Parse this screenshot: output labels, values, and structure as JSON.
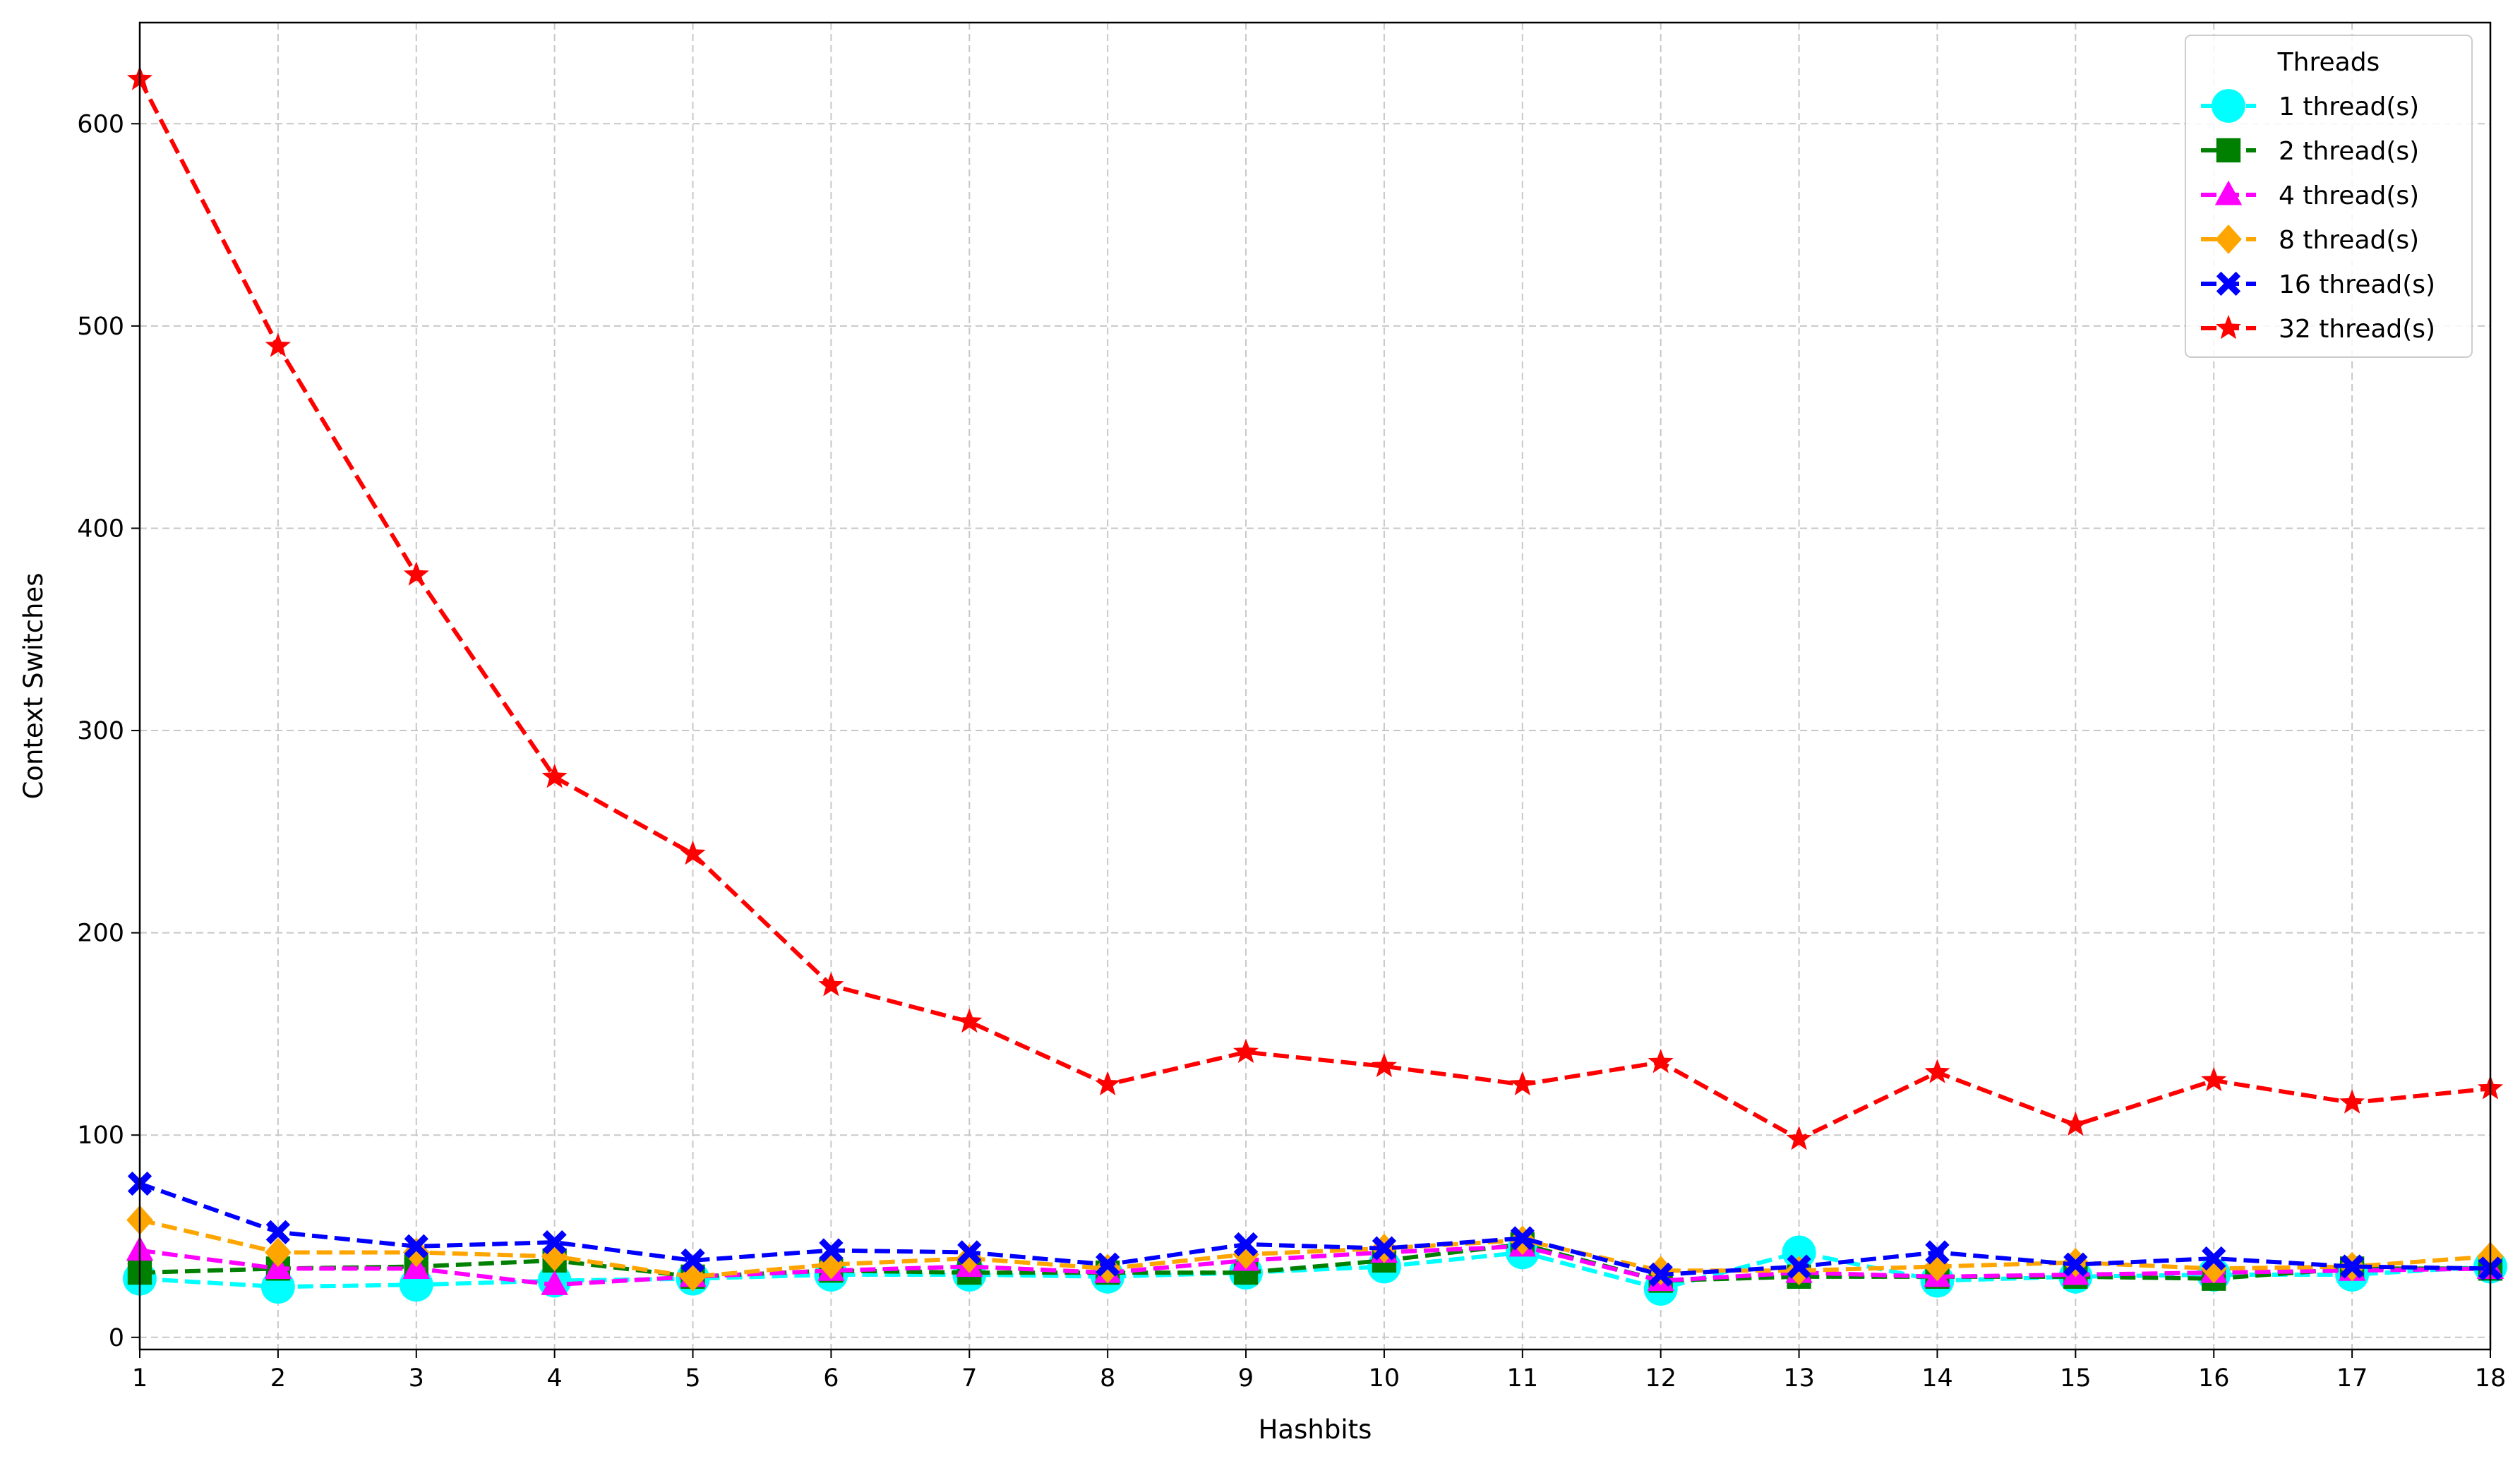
{
  "chart_data": {
    "type": "line",
    "title": "",
    "xlabel": "Hashbits",
    "ylabel": "Context Switches",
    "x": [
      1,
      2,
      3,
      4,
      5,
      6,
      7,
      8,
      9,
      10,
      11,
      12,
      13,
      14,
      15,
      16,
      17,
      18
    ],
    "xlim": [
      1,
      18
    ],
    "ylim": [
      -6,
      650
    ],
    "yticks": [
      0,
      100,
      200,
      300,
      400,
      500,
      600
    ],
    "grid": true,
    "legend": {
      "title": "Threads",
      "placement": "top-right"
    },
    "series": [
      {
        "name": "1 thread(s)",
        "color": "#00ffff",
        "marker": "circle",
        "values": [
          29,
          25,
          26,
          28,
          29,
          31,
          31,
          30,
          32,
          35,
          42,
          24,
          42,
          28,
          30,
          31,
          31,
          35
        ]
      },
      {
        "name": "2 thread(s)",
        "color": "#008000",
        "marker": "square",
        "values": [
          32,
          34,
          35,
          38,
          30,
          33,
          32,
          32,
          32,
          38,
          46,
          28,
          30,
          30,
          30,
          29,
          34,
          34
        ]
      },
      {
        "name": "4 thread(s)",
        "color": "#ff00ff",
        "marker": "triangle",
        "values": [
          43,
          34,
          34,
          26,
          30,
          33,
          35,
          32,
          38,
          42,
          45,
          28,
          32,
          30,
          31,
          32,
          33,
          34
        ]
      },
      {
        "name": "8 thread(s)",
        "color": "#ffa500",
        "marker": "diamond",
        "values": [
          58,
          42,
          42,
          40,
          30,
          36,
          39,
          34,
          41,
          44,
          48,
          33,
          33,
          35,
          37,
          34,
          35,
          40
        ]
      },
      {
        "name": "16 thread(s)",
        "color": "#0000ff",
        "marker": "x",
        "values": [
          76,
          52,
          45,
          47,
          38,
          43,
          42,
          36,
          46,
          44,
          49,
          31,
          35,
          42,
          36,
          39,
          35,
          34
        ]
      },
      {
        "name": "32 thread(s)",
        "color": "#ff0000",
        "marker": "star",
        "values": [
          622,
          490,
          377,
          277,
          239,
          174,
          156,
          125,
          141,
          134,
          125,
          136,
          98,
          131,
          105,
          127,
          116,
          123
        ]
      }
    ]
  }
}
